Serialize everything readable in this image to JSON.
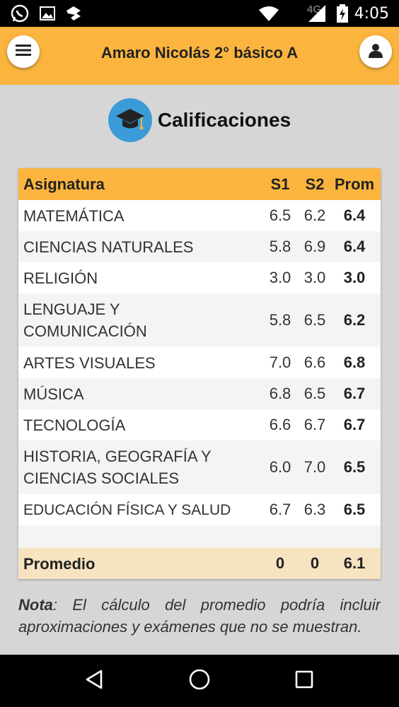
{
  "status_bar": {
    "time": "4:05",
    "network": "4G",
    "icons": [
      "whatsapp-icon",
      "image-icon",
      "app-icon",
      "wifi-icon",
      "signal-icon",
      "battery-charging-icon"
    ]
  },
  "app_bar": {
    "title": "Amaro Nicolás 2° básico A",
    "menu_icon": "hamburger-menu-icon",
    "user_icon": "user-icon"
  },
  "page": {
    "title": "Calificaciones",
    "icon": "graduation-cap-icon"
  },
  "table": {
    "headers": {
      "subject": "Asignatura",
      "s1": "S1",
      "s2": "S2",
      "prom": "Prom"
    },
    "rows": [
      {
        "subject": "MATEMÁTICA",
        "s1": "6.5",
        "s2": "6.2",
        "prom": "6.4"
      },
      {
        "subject": "CIENCIAS NATURALES",
        "s1": "5.8",
        "s2": "6.9",
        "prom": "6.4"
      },
      {
        "subject": "RELIGIÓN",
        "s1": "3.0",
        "s2": "3.0",
        "prom": "3.0"
      },
      {
        "subject": "LENGUAJE Y COMUNICACIÓN",
        "s1": "5.8",
        "s2": "6.5",
        "prom": "6.2"
      },
      {
        "subject": "ARTES VISUALES",
        "s1": "7.0",
        "s2": "6.6",
        "prom": "6.8"
      },
      {
        "subject": "MÚSICA",
        "s1": "6.8",
        "s2": "6.5",
        "prom": "6.7"
      },
      {
        "subject": "TECNOLOGÍA",
        "s1": "6.6",
        "s2": "6.7",
        "prom": "6.7"
      },
      {
        "subject": "HISTORIA, GEOGRAFÍA Y CIENCIAS SOCIALES",
        "s1": "6.0",
        "s2": "7.0",
        "prom": "6.5"
      },
      {
        "subject": "EDUCACIÓN FÍSICA Y SALUD",
        "s1": "6.7",
        "s2": "6.3",
        "prom": "6.5"
      }
    ],
    "footer": {
      "label": "Promedio",
      "s1": "0",
      "s2": "0",
      "prom": "6.1"
    }
  },
  "note": {
    "label": "Nota",
    "text": ": El cálculo del promedio podría incluir aproximaciones y exámenes que no se muestran."
  },
  "nav_bar": {
    "icons": [
      "back-icon",
      "home-icon",
      "recents-icon"
    ]
  },
  "colors": {
    "accent": "#fbb53e",
    "footer_row": "#f7e3c0",
    "icon_blue": "#3b9bd9"
  }
}
